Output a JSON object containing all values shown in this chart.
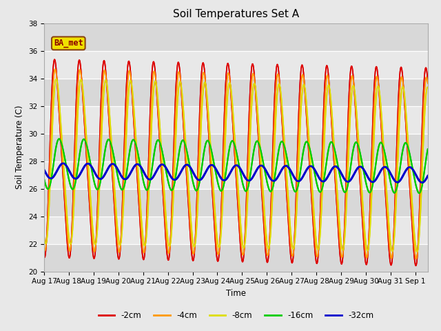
{
  "title": "Soil Temperatures Set A",
  "xlabel": "Time",
  "ylabel": "Soil Temperature (C)",
  "ylim": [
    20,
    38
  ],
  "x_tick_labels": [
    "Aug 17",
    "Aug 18",
    "Aug 19",
    "Aug 20",
    "Aug 21",
    "Aug 22",
    "Aug 23",
    "Aug 24",
    "Aug 25",
    "Aug 26",
    "Aug 27",
    "Aug 28",
    "Aug 29",
    "Aug 30",
    "Aug 31",
    "Sep 1"
  ],
  "series_colors": [
    "#dd0000",
    "#ff9900",
    "#dddd00",
    "#00cc00",
    "#0000cc"
  ],
  "series_labels": [
    "-2cm",
    "-4cm",
    "-8cm",
    "-16cm",
    "-32cm"
  ],
  "series_linewidths": [
    1.2,
    1.2,
    1.2,
    1.5,
    2.0
  ],
  "annotation_text": "BA_met",
  "fig_bg_color": "#e8e8e8",
  "plot_bg_color": "#e8e8e8",
  "title_fontsize": 11,
  "tick_fontsize": 7.5,
  "label_fontsize": 8.5,
  "legend_fontsize": 8.5,
  "amp_2cm": 6.8,
  "amp_4cm": 6.3,
  "amp_8cm": 5.8,
  "amp_16cm": 1.8,
  "amp_32cm": 0.55,
  "mean_2cm": 28.2,
  "mean_4cm": 28.1,
  "mean_8cm": 28.0,
  "mean_16cm": 27.8,
  "mean_32cm": 27.3,
  "phase_2cm": 0.22,
  "phase_4cm": 0.24,
  "phase_8cm": 0.28,
  "phase_16cm": 0.38,
  "phase_32cm": 0.52,
  "trend_shallow": -0.04,
  "trend_deep": -0.02
}
